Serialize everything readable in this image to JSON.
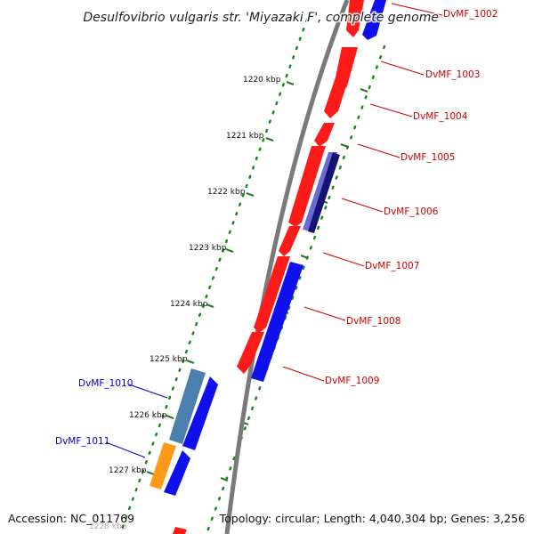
{
  "title": "Desulfovibrio vulgaris str. 'Miyazaki F', complete genome",
  "footer": {
    "accession": "Accession: NC_011769",
    "summary": "Topology: circular; Length: 4,040,304 bp; Genes: 3,256"
  },
  "colors": {
    "background": "#ffffff",
    "backbone": "#7a7a7a",
    "forward_gene": "#ff1a1a",
    "reverse_gene": "#1010ee",
    "rna_dark": "#141473",
    "rna_light": "#6a6ad4",
    "steelblue": "#4a7fae",
    "orange": "#ff9a1a",
    "gc_dots": "#1a8a1a",
    "tick": "#2a7a2a",
    "label_red": "#cc0000",
    "label_blue": "#0000cc"
  },
  "scale_labels": [
    "1220 kbp",
    "1221 kbp",
    "1222 kbp",
    "1223 kbp",
    "1224 kbp",
    "1225 kbp",
    "1226 kbp",
    "1227 kbp",
    "1228 kbp"
  ],
  "gene_labels": [
    "DvMF_1002",
    "DvMF_1003",
    "DvMF_1004",
    "DvMF_1005",
    "DvMF_1006",
    "DvMF_1007",
    "DvMF_1008",
    "DvMF_1009",
    "DvMF_1010",
    "DvMF_1011"
  ]
}
